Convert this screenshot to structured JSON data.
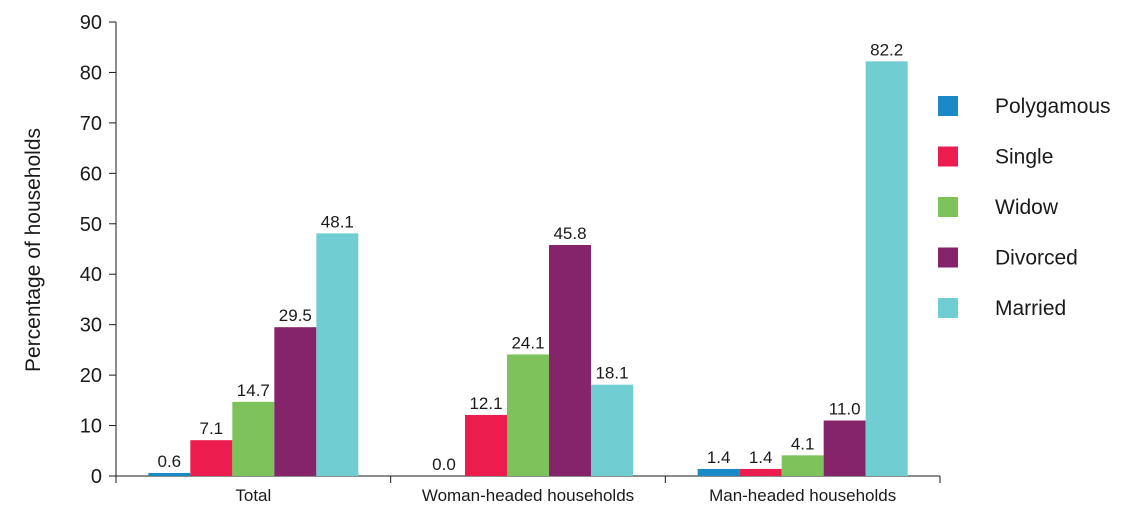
{
  "chart_data": {
    "type": "bar",
    "ylabel": "Percentage of households",
    "ylim": [
      0,
      90
    ],
    "yticks": [
      0,
      10,
      20,
      30,
      40,
      50,
      60,
      70,
      80,
      90
    ],
    "categories": [
      "Total",
      "Woman-headed households",
      "Man-headed households"
    ],
    "series": [
      {
        "name": "Polygamous",
        "color": "#1a8ac6",
        "values": [
          0.6,
          0.0,
          1.4
        ],
        "labels": [
          "0.6",
          "0.0",
          "1.4"
        ]
      },
      {
        "name": "Single",
        "color": "#ec1c4f",
        "values": [
          7.1,
          12.1,
          1.4
        ],
        "labels": [
          "7.1",
          "12.1",
          "1.4"
        ]
      },
      {
        "name": "Widow",
        "color": "#7dc25a",
        "values": [
          14.7,
          24.1,
          4.1
        ],
        "labels": [
          "14.7",
          "24.1",
          "4.1"
        ]
      },
      {
        "name": "Divorced",
        "color": "#85236b",
        "values": [
          29.5,
          45.8,
          11.0
        ],
        "labels": [
          "29.5",
          "45.8",
          "11.0"
        ]
      },
      {
        "name": "Married",
        "color": "#70cdd1",
        "values": [
          48.1,
          18.1,
          82.2
        ],
        "labels": [
          "48.1",
          "18.1",
          "82.2"
        ]
      }
    ],
    "legend_position": "right",
    "grid": false
  }
}
